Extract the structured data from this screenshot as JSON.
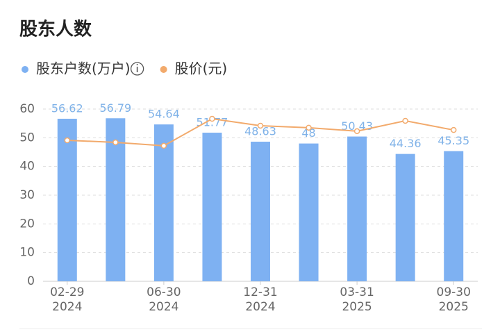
{
  "chart_data": {
    "type": "bar",
    "title": "股东人数",
    "categories": [
      "02-29\n2024",
      null,
      "06-30\n2024",
      null,
      "12-31\n2024",
      null,
      "03-31\n2025",
      null,
      "09-30\n2025"
    ],
    "series": [
      {
        "name": "股东户数(万户)",
        "type": "bar",
        "color": "#7eb1f2",
        "label_color": "#7fb2e8",
        "values": [
          56.62,
          56.79,
          54.64,
          51.77,
          48.63,
          48,
          50.43,
          44.36,
          45.35
        ]
      },
      {
        "name": "股价(元)",
        "type": "line",
        "color": "#f2aa6c",
        "values": [
          49.1,
          48.4,
          47.2,
          56.6,
          54.2,
          53.5,
          52.3,
          55.9,
          52.7
        ]
      }
    ],
    "ylim": [
      0,
      60
    ],
    "yticks": [
      0,
      10,
      20,
      30,
      40,
      50,
      60
    ],
    "grid": true
  }
}
